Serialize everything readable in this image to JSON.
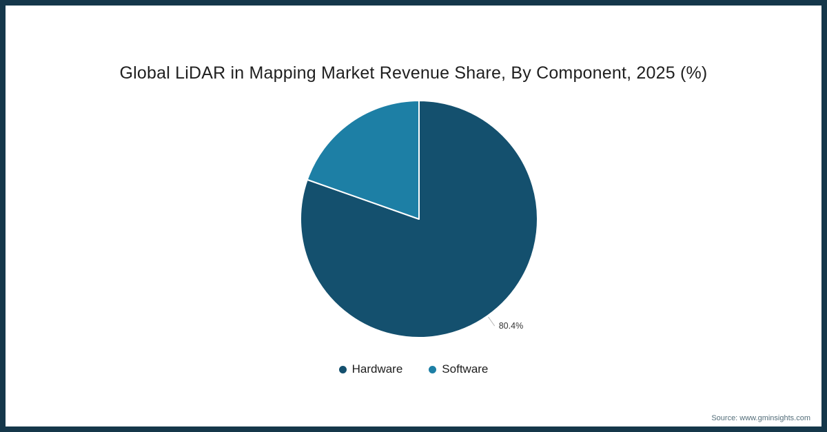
{
  "frame": {
    "border_color": "#15374a",
    "background_color": "#ffffff"
  },
  "chart_data": {
    "type": "pie",
    "title": "Global LiDAR in Mapping Market Revenue Share, By Component, 2025 (%)",
    "start_angle_deg": 0,
    "legend_position": "bottom",
    "series": [
      {
        "name": "Hardware",
        "value": 80.4,
        "color": "#14506e",
        "label": "80.4%"
      },
      {
        "name": "Software",
        "value": 19.6,
        "color": "#1d7fa5"
      }
    ],
    "data_label_color": "#333333",
    "connector_color": "#b5b5b5",
    "slice_border_color": "#ffffff"
  },
  "source": {
    "text": "Source: www.gminsights.com"
  }
}
